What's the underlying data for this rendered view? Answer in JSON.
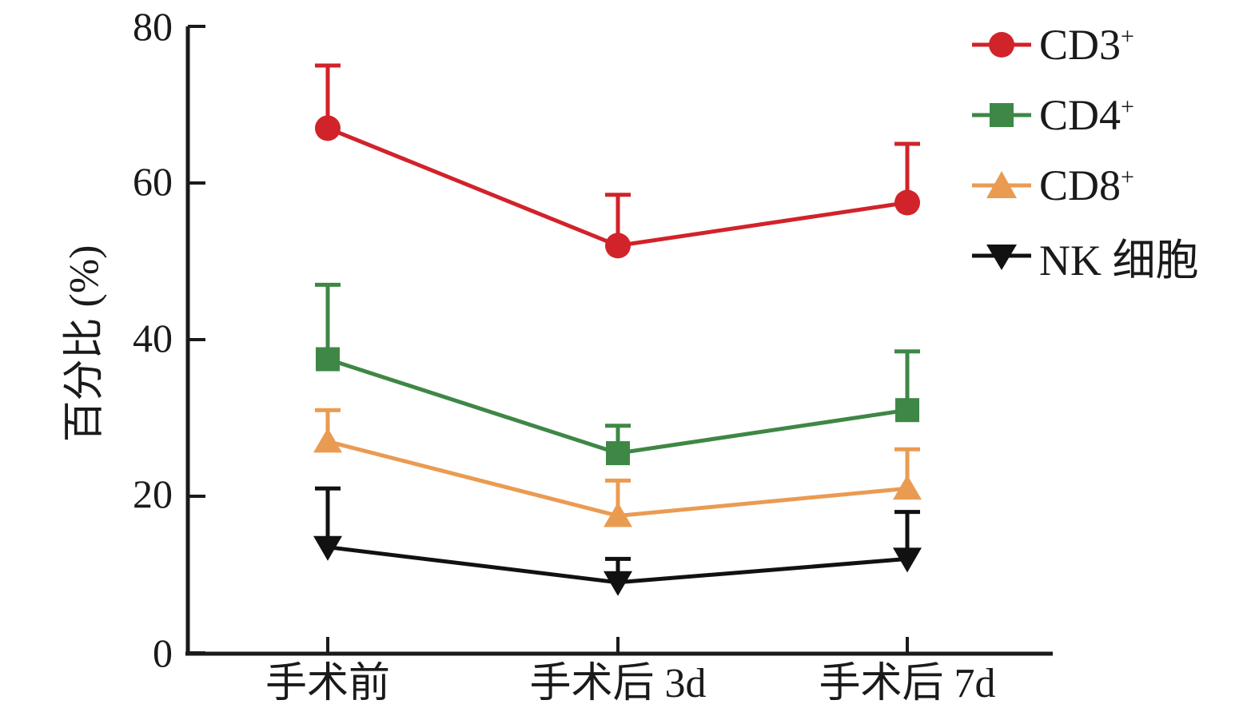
{
  "figure": {
    "background": "#ffffff"
  },
  "chart_data": {
    "type": "line",
    "title": "",
    "xlabel": "",
    "ylabel": "百分比 (%)",
    "categories": [
      "手术前",
      "手术后 3d",
      "手术后 7d"
    ],
    "yticks": [
      0,
      20,
      40,
      60,
      80
    ],
    "ylim": [
      0,
      80
    ],
    "grid": false,
    "legend_position": "top-right",
    "error_bars": "upper-only",
    "axis_color": "#1a1a1a",
    "series": [
      {
        "name": "CD3",
        "name_sup": "+",
        "marker": "circle",
        "color": "#d1232a",
        "values": [
          67,
          52,
          57.5
        ],
        "errors_plus": [
          8,
          6.5,
          7.5
        ]
      },
      {
        "name": "CD4",
        "name_sup": "+",
        "marker": "square",
        "color": "#3e8746",
        "values": [
          37.5,
          25.5,
          31
        ],
        "errors_plus": [
          9.5,
          3.5,
          7.5
        ]
      },
      {
        "name": "CD8",
        "name_sup": "+",
        "marker": "triangle-up",
        "color": "#ea9b52",
        "values": [
          27,
          17.5,
          21
        ],
        "errors_plus": [
          4,
          4.5,
          5
        ]
      },
      {
        "name": "NK 细胞",
        "name_sup": "",
        "marker": "triangle-down",
        "color": "#111111",
        "values": [
          13.5,
          9,
          12
        ],
        "errors_plus": [
          7.5,
          3,
          6
        ]
      }
    ]
  }
}
